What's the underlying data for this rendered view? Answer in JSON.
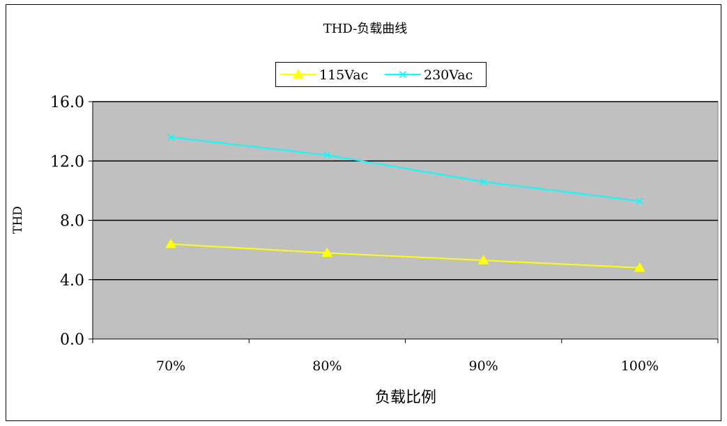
{
  "chart_data": {
    "type": "line",
    "title": "THD-负载曲线",
    "xlabel": "负载比例",
    "ylabel": "THD",
    "categories": [
      "70%",
      "80%",
      "90%",
      "100%"
    ],
    "ylim": [
      0,
      16
    ],
    "yticks": [
      "0.0",
      "4.0",
      "8.0",
      "12.0",
      "16.0"
    ],
    "grid": "horizontal",
    "legend_position": "top-center",
    "plot_background": "#c0c0c0",
    "series": [
      {
        "name": "115Vac",
        "values": [
          6.4,
          5.8,
          5.3,
          4.8
        ],
        "color": "#ffff00",
        "marker": "triangle"
      },
      {
        "name": "230Vac",
        "values": [
          13.6,
          12.4,
          10.6,
          9.3
        ],
        "color": "#00ffff",
        "marker": "x"
      }
    ]
  }
}
